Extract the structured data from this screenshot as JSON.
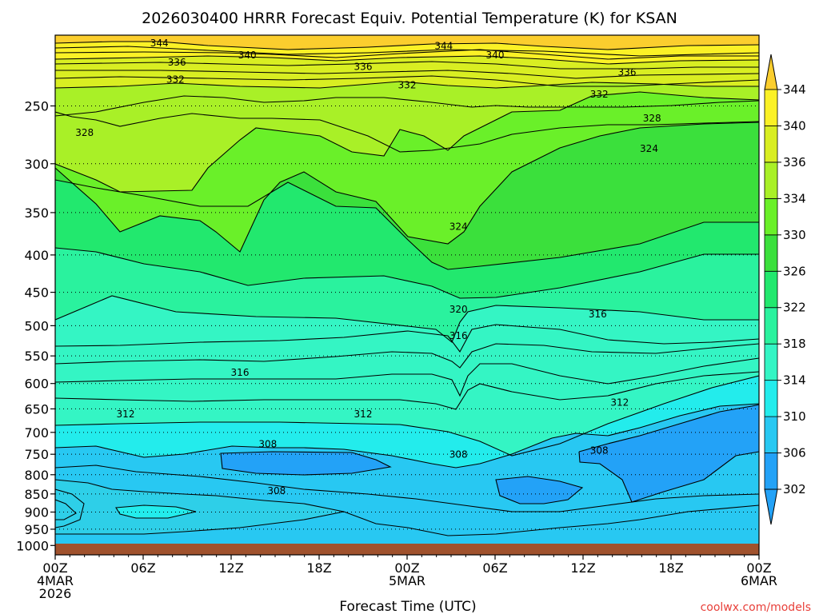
{
  "chart_data": {
    "type": "contour",
    "title": "2026030400 HRRR Forecast Equiv. Potential Temperature (K) for KSAN",
    "xlabel": "Forecast Time (UTC)",
    "credit": "coolwx.com/models",
    "x_ticks": [
      {
        "hour": 0,
        "l1": "00Z",
        "l2": "4MAR",
        "l3": "2026"
      },
      {
        "hour": 6,
        "l1": "06Z"
      },
      {
        "hour": 12,
        "l1": "12Z"
      },
      {
        "hour": 18,
        "l1": "18Z"
      },
      {
        "hour": 24,
        "l1": "00Z",
        "l2": "5MAR"
      },
      {
        "hour": 30,
        "l1": "06Z"
      },
      {
        "hour": 36,
        "l1": "12Z"
      },
      {
        "hour": 42,
        "l1": "18Z"
      },
      {
        "hour": 48,
        "l1": "00Z",
        "l2": "6MAR"
      }
    ],
    "x_range_hours": [
      0,
      48
    ],
    "y_ticks": [
      250,
      300,
      350,
      400,
      450,
      500,
      550,
      600,
      650,
      700,
      750,
      800,
      850,
      900,
      950,
      1000
    ],
    "y_range_hPa": [
      200,
      1030
    ],
    "y_scale": "log",
    "colorbar_labels": [
      302,
      306,
      310,
      314,
      318,
      322,
      326,
      330,
      334,
      336,
      340,
      344
    ],
    "colorbar_colors": [
      "#23a2f7",
      "#28c8f2",
      "#23ecec",
      "#34f5c4",
      "#2af29e",
      "#22e86e",
      "#3be03c",
      "#6af029",
      "#a9f027",
      "#d9ee22",
      "#fbf126",
      "#fbce2e"
    ],
    "levels_K": [
      304,
      308,
      312,
      316,
      320,
      324,
      328,
      332,
      336,
      340,
      344
    ],
    "contour_labels": [
      {
        "text": "344",
        "hour": 7.1,
        "p": 205
      },
      {
        "text": "344",
        "hour": 26.5,
        "p": 207
      },
      {
        "text": "340",
        "hour": 13.1,
        "p": 213
      },
      {
        "text": "340",
        "hour": 30,
        "p": 213
      },
      {
        "text": "336",
        "hour": 8.3,
        "p": 218
      },
      {
        "text": "336",
        "hour": 21,
        "p": 221
      },
      {
        "text": "336",
        "hour": 39,
        "p": 225
      },
      {
        "text": "332",
        "hour": 8.2,
        "p": 230
      },
      {
        "text": "332",
        "hour": 24,
        "p": 234
      },
      {
        "text": "332",
        "hour": 37.1,
        "p": 241
      },
      {
        "text": "328",
        "hour": 2,
        "p": 272
      },
      {
        "text": "328",
        "hour": 40.7,
        "p": 260
      },
      {
        "text": "324",
        "hour": 40.5,
        "p": 286
      },
      {
        "text": "324",
        "hour": 27.5,
        "p": 366
      },
      {
        "text": "320",
        "hour": 27.5,
        "p": 475
      },
      {
        "text": "316",
        "hour": 37,
        "p": 482
      },
      {
        "text": "316",
        "hour": 27.5,
        "p": 516
      },
      {
        "text": "316",
        "hour": 12.6,
        "p": 580
      },
      {
        "text": "312",
        "hour": 4.8,
        "p": 661
      },
      {
        "text": "312",
        "hour": 21,
        "p": 661
      },
      {
        "text": "312",
        "hour": 38.5,
        "p": 637
      },
      {
        "text": "308",
        "hour": 14.5,
        "p": 726
      },
      {
        "text": "308",
        "hour": 27.5,
        "p": 751
      },
      {
        "text": "308",
        "hour": 37.1,
        "p": 741
      },
      {
        "text": "308",
        "hour": 15.1,
        "p": 842
      }
    ]
  }
}
